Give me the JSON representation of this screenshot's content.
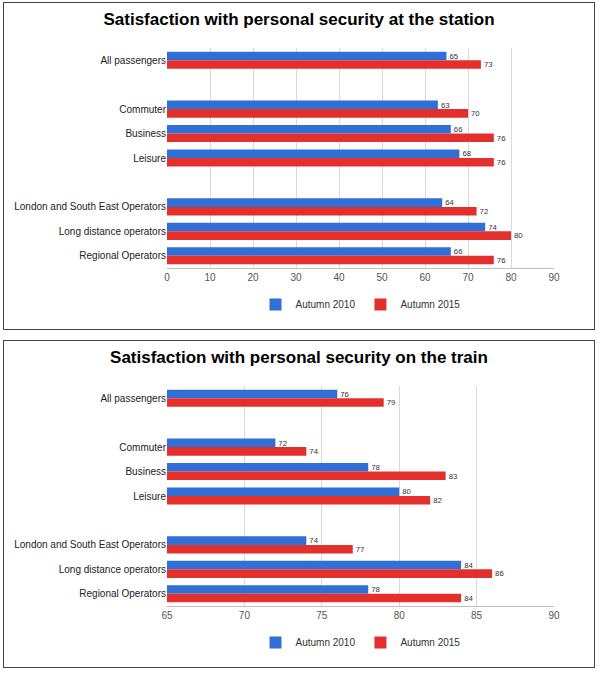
{
  "chart_data": [
    {
      "type": "bar",
      "title": "Satisfaction with personal security at the station",
      "orientation": "horizontal",
      "categories": [
        "All passengers",
        null,
        "Commuter",
        "Business",
        "Leisure",
        null,
        "London and South East Operators",
        "Long distance operators",
        "Regional Operators"
      ],
      "series": [
        {
          "name": "Autumn 2010",
          "color": "#2f6fd6",
          "values": [
            65,
            null,
            63,
            66,
            68,
            null,
            64,
            74,
            66
          ]
        },
        {
          "name": "Autumn 2015",
          "color": "#e3302c",
          "values": [
            73,
            null,
            70,
            76,
            76,
            null,
            72,
            80,
            76
          ]
        }
      ],
      "xlim": [
        0,
        90
      ],
      "xticks": [
        0,
        10,
        20,
        30,
        40,
        50,
        60,
        70,
        80,
        90
      ],
      "grid": true,
      "data_labels": true,
      "legend": "bottom"
    },
    {
      "type": "bar",
      "title": "Satisfaction with personal security on the train",
      "orientation": "horizontal",
      "categories": [
        "All passengers",
        null,
        "Commuter",
        "Business",
        "Leisure",
        null,
        "London and South East Operators",
        "Long distance operators",
        "Regional Operators"
      ],
      "series": [
        {
          "name": "Autumn 2010",
          "color": "#2f6fd6",
          "values": [
            76,
            null,
            72,
            78,
            80,
            null,
            74,
            84,
            78
          ]
        },
        {
          "name": "Autumn 2015",
          "color": "#e3302c",
          "values": [
            79,
            null,
            74,
            83,
            82,
            null,
            77,
            86,
            84
          ]
        }
      ],
      "xlim": [
        65,
        90
      ],
      "xticks": [
        65,
        70,
        75,
        80,
        85,
        90
      ],
      "grid": true,
      "data_labels": true,
      "legend": "bottom"
    }
  ]
}
